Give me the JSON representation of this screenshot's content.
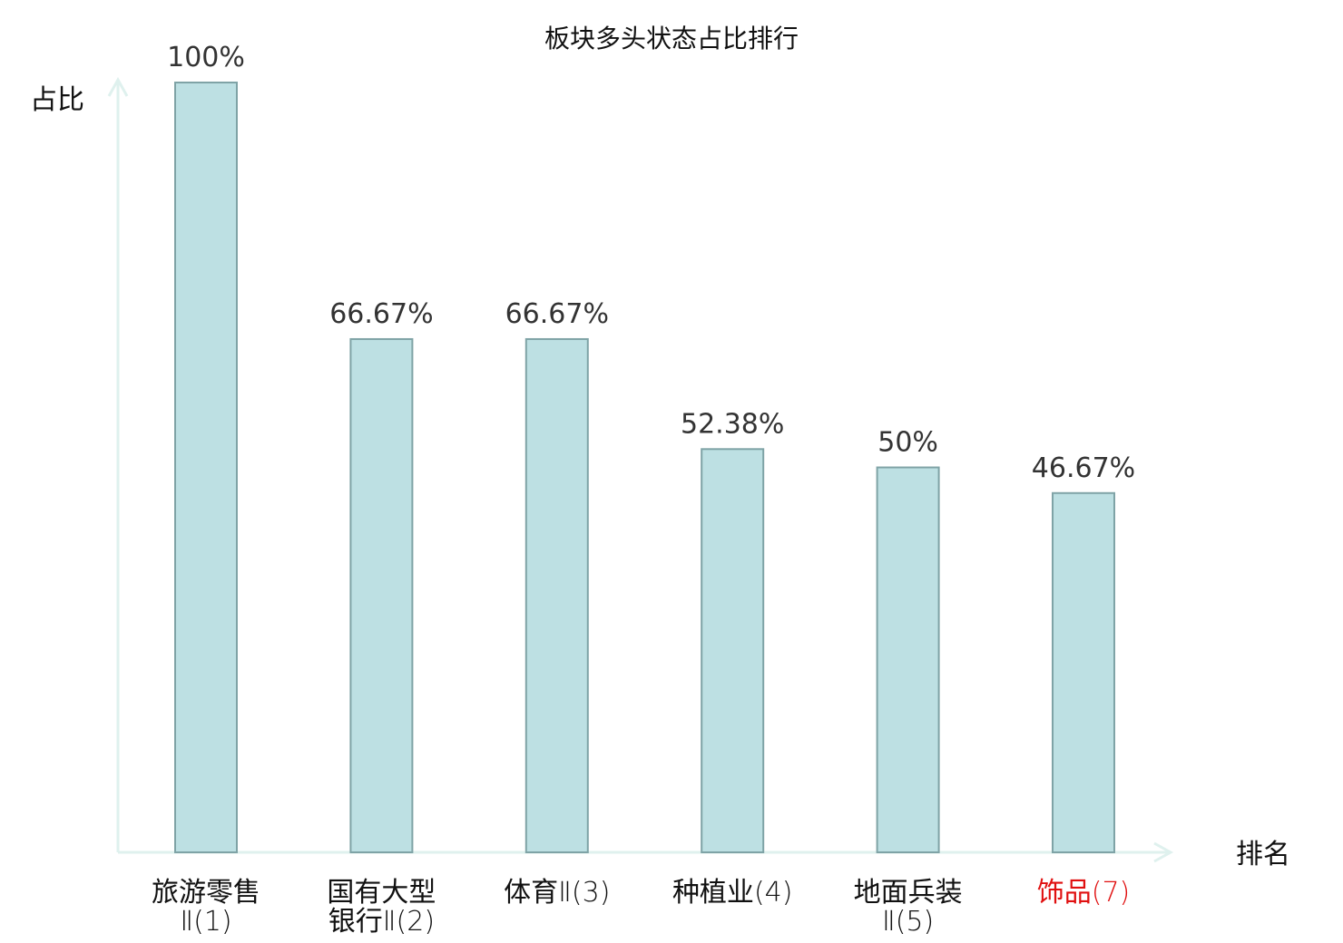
{
  "chart_data": {
    "type": "bar",
    "title": "板块多头状态占比排行",
    "ylabel": "占比",
    "xlabel": "排名",
    "ylim": [
      0,
      100
    ],
    "categories": [
      {
        "name": "旅游零售Ⅱ",
        "rank": "(1)",
        "lines": [
          "旅游零售",
          "Ⅱ(1)"
        ],
        "highlight": false
      },
      {
        "name": "国有大型银行Ⅱ",
        "rank": "(2)",
        "lines": [
          "国有大型",
          "银行Ⅱ(2)"
        ],
        "highlight": false
      },
      {
        "name": "体育Ⅱ",
        "rank": "(3)",
        "lines": [
          "体育Ⅱ(3)"
        ],
        "highlight": false
      },
      {
        "name": "种植业",
        "rank": "(4)",
        "lines": [
          "种植业(4)"
        ],
        "highlight": false
      },
      {
        "name": "地面兵装Ⅱ",
        "rank": "(5)",
        "lines": [
          "地面兵装",
          "Ⅱ(5)"
        ],
        "highlight": false
      },
      {
        "name": "饰品",
        "rank": "(7)",
        "lines": [
          "饰品(7)"
        ],
        "highlight": true
      }
    ],
    "values": [
      100,
      66.67,
      66.67,
      52.38,
      50,
      46.67
    ],
    "value_labels": [
      "100%",
      "66.67%",
      "66.67%",
      "52.38%",
      "50%",
      "46.67%"
    ],
    "grid": false,
    "legend": "none"
  },
  "colors": {
    "bar_fill": "#bde0e3",
    "bar_stroke": "#7fa3a6",
    "axis": "#dff1ee",
    "text": "#111111",
    "value_text": "#333333",
    "highlight_text": "#e01010"
  }
}
